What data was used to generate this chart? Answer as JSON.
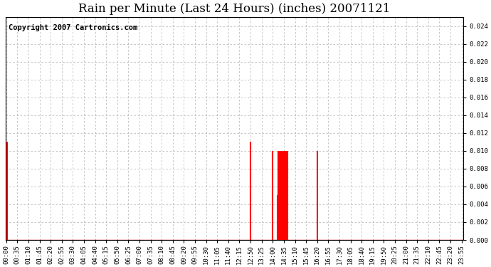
{
  "title": "Rain per Minute (Last 24 Hours) (inches) 20071121",
  "copyright_text": "Copyright 2007 Cartronics.com",
  "background_color": "#ffffff",
  "plot_bg_color": "#ffffff",
  "grid_color": "#bbbbbb",
  "bar_color": "#ff0000",
  "baseline_color": "#cc0000",
  "ylim": [
    0.0,
    0.025
  ],
  "yticks": [
    0.0,
    0.002,
    0.004,
    0.006,
    0.008,
    0.01,
    0.012,
    0.014,
    0.016,
    0.018,
    0.02,
    0.022,
    0.024
  ],
  "num_minutes": 1440,
  "rain_events": [
    {
      "minute": 2,
      "value": 0.011
    },
    {
      "minute": 770,
      "value": 0.011
    },
    {
      "minute": 840,
      "value": 0.01
    },
    {
      "minute": 855,
      "value": 0.005
    },
    {
      "minute": 858,
      "value": 0.01
    },
    {
      "minute": 862,
      "value": 0.01
    },
    {
      "minute": 866,
      "value": 0.01
    },
    {
      "minute": 870,
      "value": 0.01
    },
    {
      "minute": 874,
      "value": 0.01
    },
    {
      "minute": 878,
      "value": 0.01
    },
    {
      "minute": 882,
      "value": 0.01
    },
    {
      "minute": 886,
      "value": 0.01
    },
    {
      "minute": 980,
      "value": 0.01
    }
  ],
  "xtick_interval": 35,
  "title_fontsize": 12,
  "tick_fontsize": 6.5,
  "copyright_fontsize": 7.5,
  "figsize": [
    6.9,
    3.75
  ],
  "dpi": 100
}
